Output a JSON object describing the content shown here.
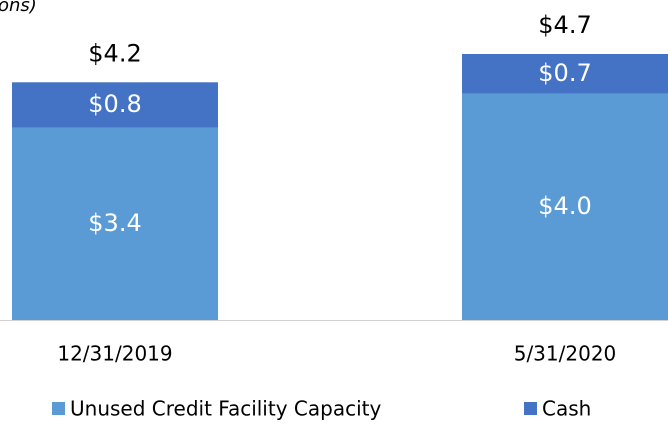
{
  "chart_data": {
    "type": "stacked_bar",
    "subtitle": "ons)",
    "categories": [
      "12/31/2019",
      "5/31/2020"
    ],
    "series": [
      {
        "name": "Unused Credit Facility Capacity",
        "color": "#5b9bd5",
        "values": [
          3.4,
          4.0
        ],
        "value_labels": [
          "$3.4",
          "$4.0"
        ]
      },
      {
        "name": "Cash",
        "color": "#4472c4",
        "values": [
          0.8,
          0.7
        ],
        "value_labels": [
          "$0.8",
          "$0.7"
        ]
      }
    ],
    "totals": [
      4.2,
      4.7
    ],
    "total_labels": [
      "$4.2",
      "$4.7"
    ],
    "legend": "bottom"
  }
}
